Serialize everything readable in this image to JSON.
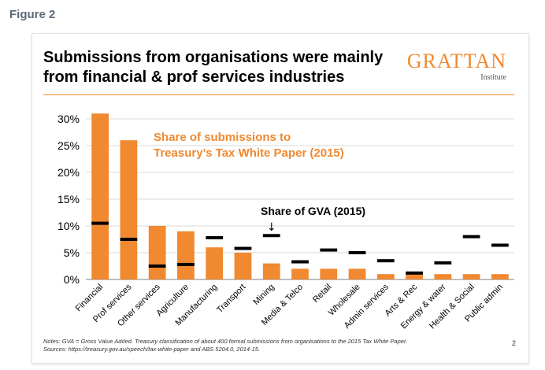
{
  "figure_label": "Figure 2",
  "slide": {
    "title_line1": "Submissions from organisations were mainly",
    "title_line2": "from financial & prof services industries",
    "logo_name": "GRATTAN",
    "logo_sub": "Institute",
    "notes_line1": "Notes: GVA = Gross Value Added. Treasury classification of about 400 formal submissions from organisations to the 2015 Tax White Paper.",
    "notes_line2": "Sources: https://treasury.gov.au/speech/tax-white-paper and ABS 5204.0, 2014-15.",
    "page_number": "2"
  },
  "colors": {
    "bar": "#f0892f",
    "marker": "#000000",
    "annotation_orange": "#f0892f",
    "gridline": "#d9d9d9",
    "axis": "#7f7f7f"
  },
  "chart_data": {
    "type": "bar",
    "title": "Submissions from organisations were mainly from financial & prof services industries",
    "xlabel": "",
    "ylabel": "",
    "ylim": [
      0,
      30
    ],
    "yticks": [
      0,
      5,
      10,
      15,
      20,
      25,
      30
    ],
    "ytick_labels": [
      "0%",
      "5%",
      "10%",
      "15%",
      "20%",
      "25%",
      "30%"
    ],
    "grid": true,
    "categories": [
      "Financial",
      "Prof services",
      "Other services",
      "Agriculture",
      "Manufacturing",
      "Transport",
      "Mining",
      "Media & Telco",
      "Retail",
      "Wholesale",
      "Admin services",
      "Arts & Rec",
      "Energy & water",
      "Health & Social",
      "Public admin"
    ],
    "series": [
      {
        "name": "Share of submissions to Treasury’s Tax White Paper (2015)",
        "style": "bar",
        "values": [
          31,
          26,
          10,
          9,
          6,
          5,
          3,
          2,
          2,
          2,
          1,
          1,
          1,
          1,
          1
        ]
      },
      {
        "name": "Share of GVA (2015)",
        "style": "marker",
        "values": [
          10.5,
          7.5,
          2.5,
          2.8,
          7.8,
          5.8,
          8.2,
          3.3,
          5.5,
          5.0,
          3.5,
          1.2,
          3.1,
          8.0,
          6.4
        ]
      }
    ],
    "annotations": {
      "bar_label_line1": "Share of submissions to",
      "bar_label_line2": "Treasury’s Tax White Paper (2015)",
      "marker_label": "Share of GVA (2015)",
      "marker_arrow": "↓"
    }
  }
}
